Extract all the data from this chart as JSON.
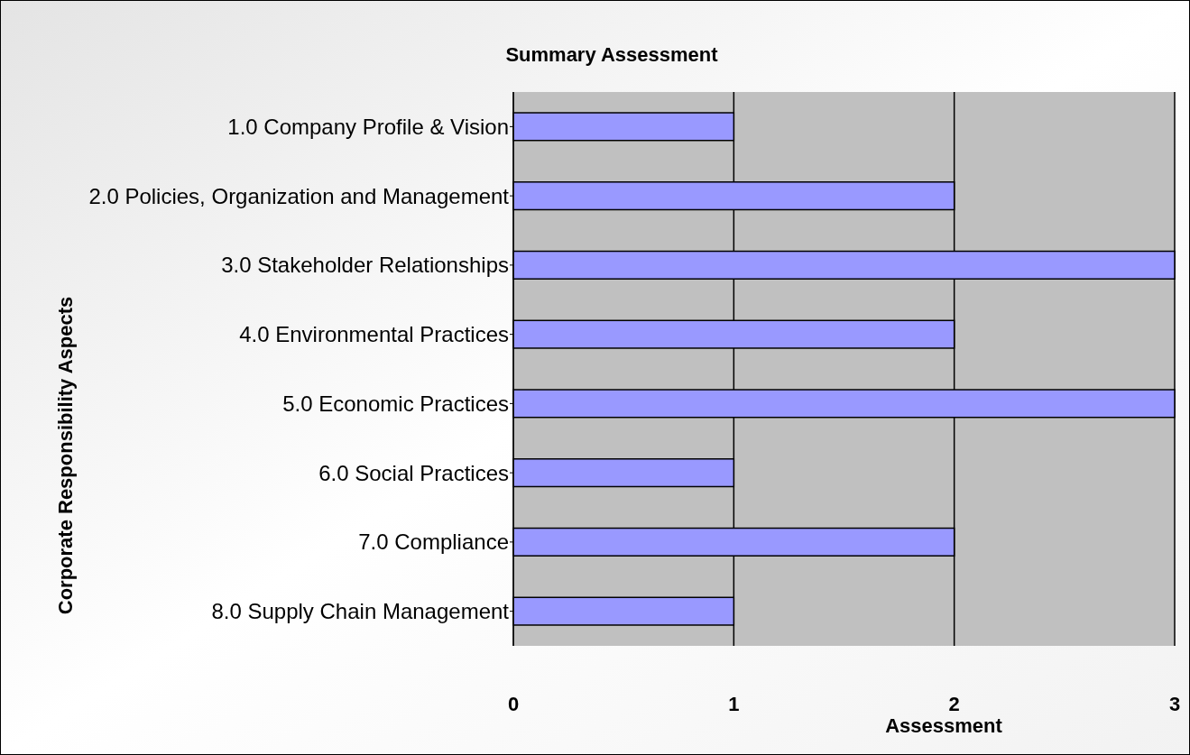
{
  "chart_data": {
    "type": "bar",
    "orientation": "horizontal",
    "title": "Summary Assessment",
    "xlabel": "Assessment",
    "ylabel": "Corporate Responsibility Aspects",
    "categories": [
      "1.0 Company Profile & Vision",
      "2.0 Policies, Organization and Management",
      "3.0 Stakeholder Relationships",
      "4.0 Environmental Practices",
      "5.0 Economic Practices",
      "6.0 Social Practices",
      "7.0 Compliance",
      "8.0 Supply Chain Management"
    ],
    "values": [
      1,
      2,
      3,
      2,
      3,
      1,
      2,
      1
    ],
    "color": "#9999ff",
    "xlim": [
      0,
      3
    ],
    "xticks": [
      0,
      1,
      2,
      3
    ],
    "grid": "x"
  }
}
